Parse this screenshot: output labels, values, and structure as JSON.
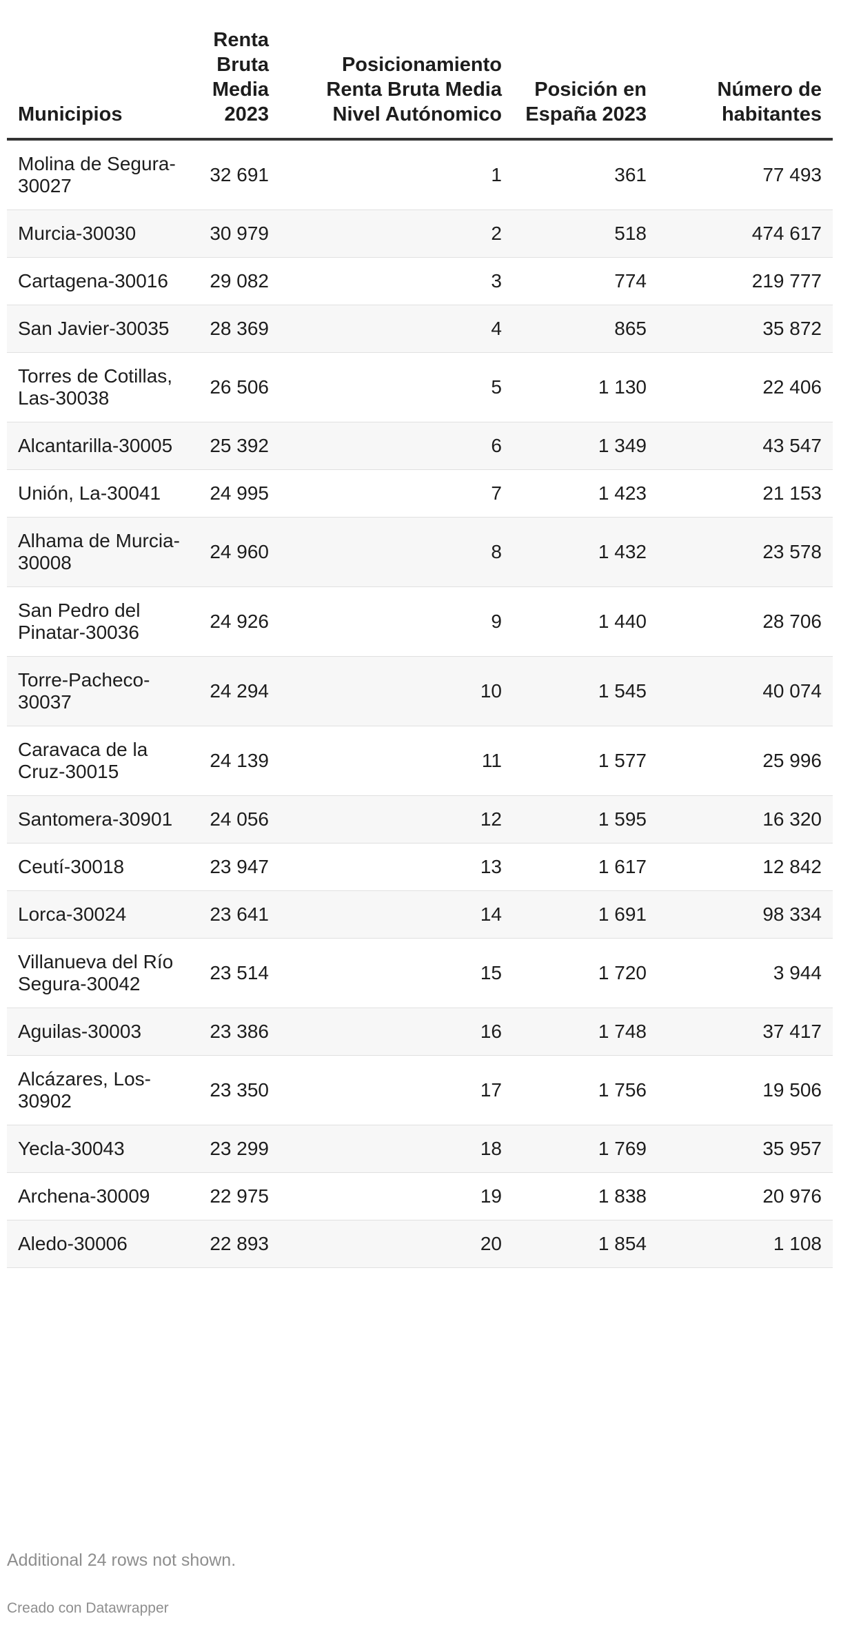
{
  "chart_data": {
    "type": "table",
    "columns": [
      "Municipios",
      "Renta Bruta Media 2023",
      "Posicionamiento Renta Bruta Media Nivel Autónomico",
      "Posición en España 2023",
      "Número de habitantes"
    ],
    "rows": [
      [
        "Molina de Segura-30027",
        "32 691",
        "1",
        "361",
        "77 493"
      ],
      [
        "Murcia-30030",
        "30 979",
        "2",
        "518",
        "474 617"
      ],
      [
        "Cartagena-30016",
        "29 082",
        "3",
        "774",
        "219 777"
      ],
      [
        "San Javier-30035",
        "28 369",
        "4",
        "865",
        "35 872"
      ],
      [
        "Torres de Cotillas, Las-30038",
        "26 506",
        "5",
        "1 130",
        "22 406"
      ],
      [
        "Alcantarilla-30005",
        "25 392",
        "6",
        "1 349",
        "43 547"
      ],
      [
        "Unión, La-30041",
        "24 995",
        "7",
        "1 423",
        "21 153"
      ],
      [
        "Alhama de Murcia-30008",
        "24 960",
        "8",
        "1 432",
        "23 578"
      ],
      [
        "San Pedro del Pinatar-30036",
        "24 926",
        "9",
        "1 440",
        "28 706"
      ],
      [
        "Torre-Pacheco-30037",
        "24 294",
        "10",
        "1 545",
        "40 074"
      ],
      [
        "Caravaca de la Cruz-30015",
        "24 139",
        "11",
        "1 577",
        "25 996"
      ],
      [
        "Santomera-30901",
        "24 056",
        "12",
        "1 595",
        "16 320"
      ],
      [
        "Ceutí-30018",
        "23 947",
        "13",
        "1 617",
        "12 842"
      ],
      [
        "Lorca-30024",
        "23 641",
        "14",
        "1 691",
        "98 334"
      ],
      [
        "Villanueva del Río Segura-30042",
        "23 514",
        "15",
        "1 720",
        "3 944"
      ],
      [
        "Aguilas-30003",
        "23 386",
        "16",
        "1 748",
        "37 417"
      ],
      [
        "Alcázares, Los-30902",
        "23 350",
        "17",
        "1 756",
        "19 506"
      ],
      [
        "Yecla-30043",
        "23 299",
        "18",
        "1 769",
        "35 957"
      ],
      [
        "Archena-30009",
        "22 975",
        "19",
        "1 838",
        "20 976"
      ],
      [
        "Aledo-30006",
        "22 893",
        "20",
        "1 854",
        "1 108"
      ]
    ]
  },
  "notes": "Additional 24 rows not shown.",
  "credit": "Creado con Datawrapper"
}
